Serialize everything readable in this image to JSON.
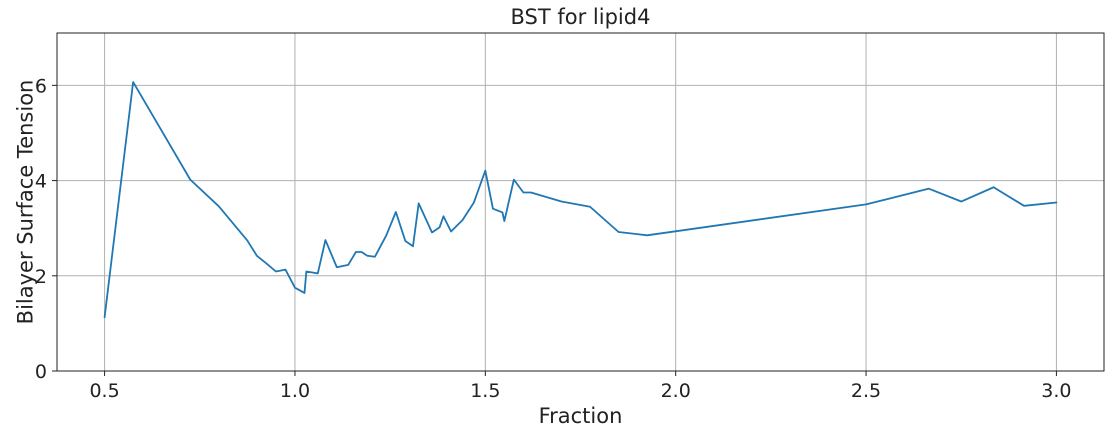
{
  "chart_data": {
    "type": "line",
    "title": "BST for lipid4",
    "xlabel": "Fraction",
    "ylabel": "Bilayer Surface Tension",
    "xlim": [
      0.375,
      3.125
    ],
    "ylim": [
      0,
      7.1
    ],
    "xticks": [
      0.5,
      1.0,
      1.5,
      2.0,
      2.5,
      3.0
    ],
    "xtick_labels": [
      "0.5",
      "1.0",
      "1.5",
      "2.0",
      "2.5",
      "3.0"
    ],
    "yticks": [
      0,
      2,
      4,
      6
    ],
    "ytick_labels": [
      "0",
      "2",
      "4",
      "6"
    ],
    "grid": true,
    "line_color": "#1f77b4",
    "series": [
      {
        "x": [
          0.5,
          0.575,
          0.725,
          0.8,
          0.875,
          0.9,
          0.925,
          0.95,
          0.975,
          1.0,
          1.025,
          1.03,
          1.06,
          1.08,
          1.11,
          1.14,
          1.16,
          1.175,
          1.19,
          1.21,
          1.24,
          1.265,
          1.29,
          1.31,
          1.325,
          1.36,
          1.38,
          1.39,
          1.41,
          1.44,
          1.47,
          1.5,
          1.52,
          1.545,
          1.55,
          1.575,
          1.6,
          1.62,
          1.7,
          1.775,
          1.85,
          1.925,
          2.5,
          2.665,
          2.75,
          2.835,
          2.915,
          3.0
        ],
        "y": [
          1.13,
          6.07,
          4.02,
          3.46,
          2.74,
          2.42,
          2.26,
          2.09,
          2.13,
          1.75,
          1.64,
          2.09,
          2.05,
          2.75,
          2.18,
          2.23,
          2.5,
          2.5,
          2.42,
          2.4,
          2.85,
          3.34,
          2.73,
          2.62,
          3.52,
          2.91,
          3.02,
          3.25,
          2.93,
          3.17,
          3.54,
          4.21,
          3.41,
          3.33,
          3.15,
          4.02,
          3.75,
          3.75,
          3.56,
          3.45,
          2.92,
          2.85,
          3.5,
          3.83,
          3.56,
          3.86,
          3.47,
          3.54
        ]
      }
    ]
  }
}
